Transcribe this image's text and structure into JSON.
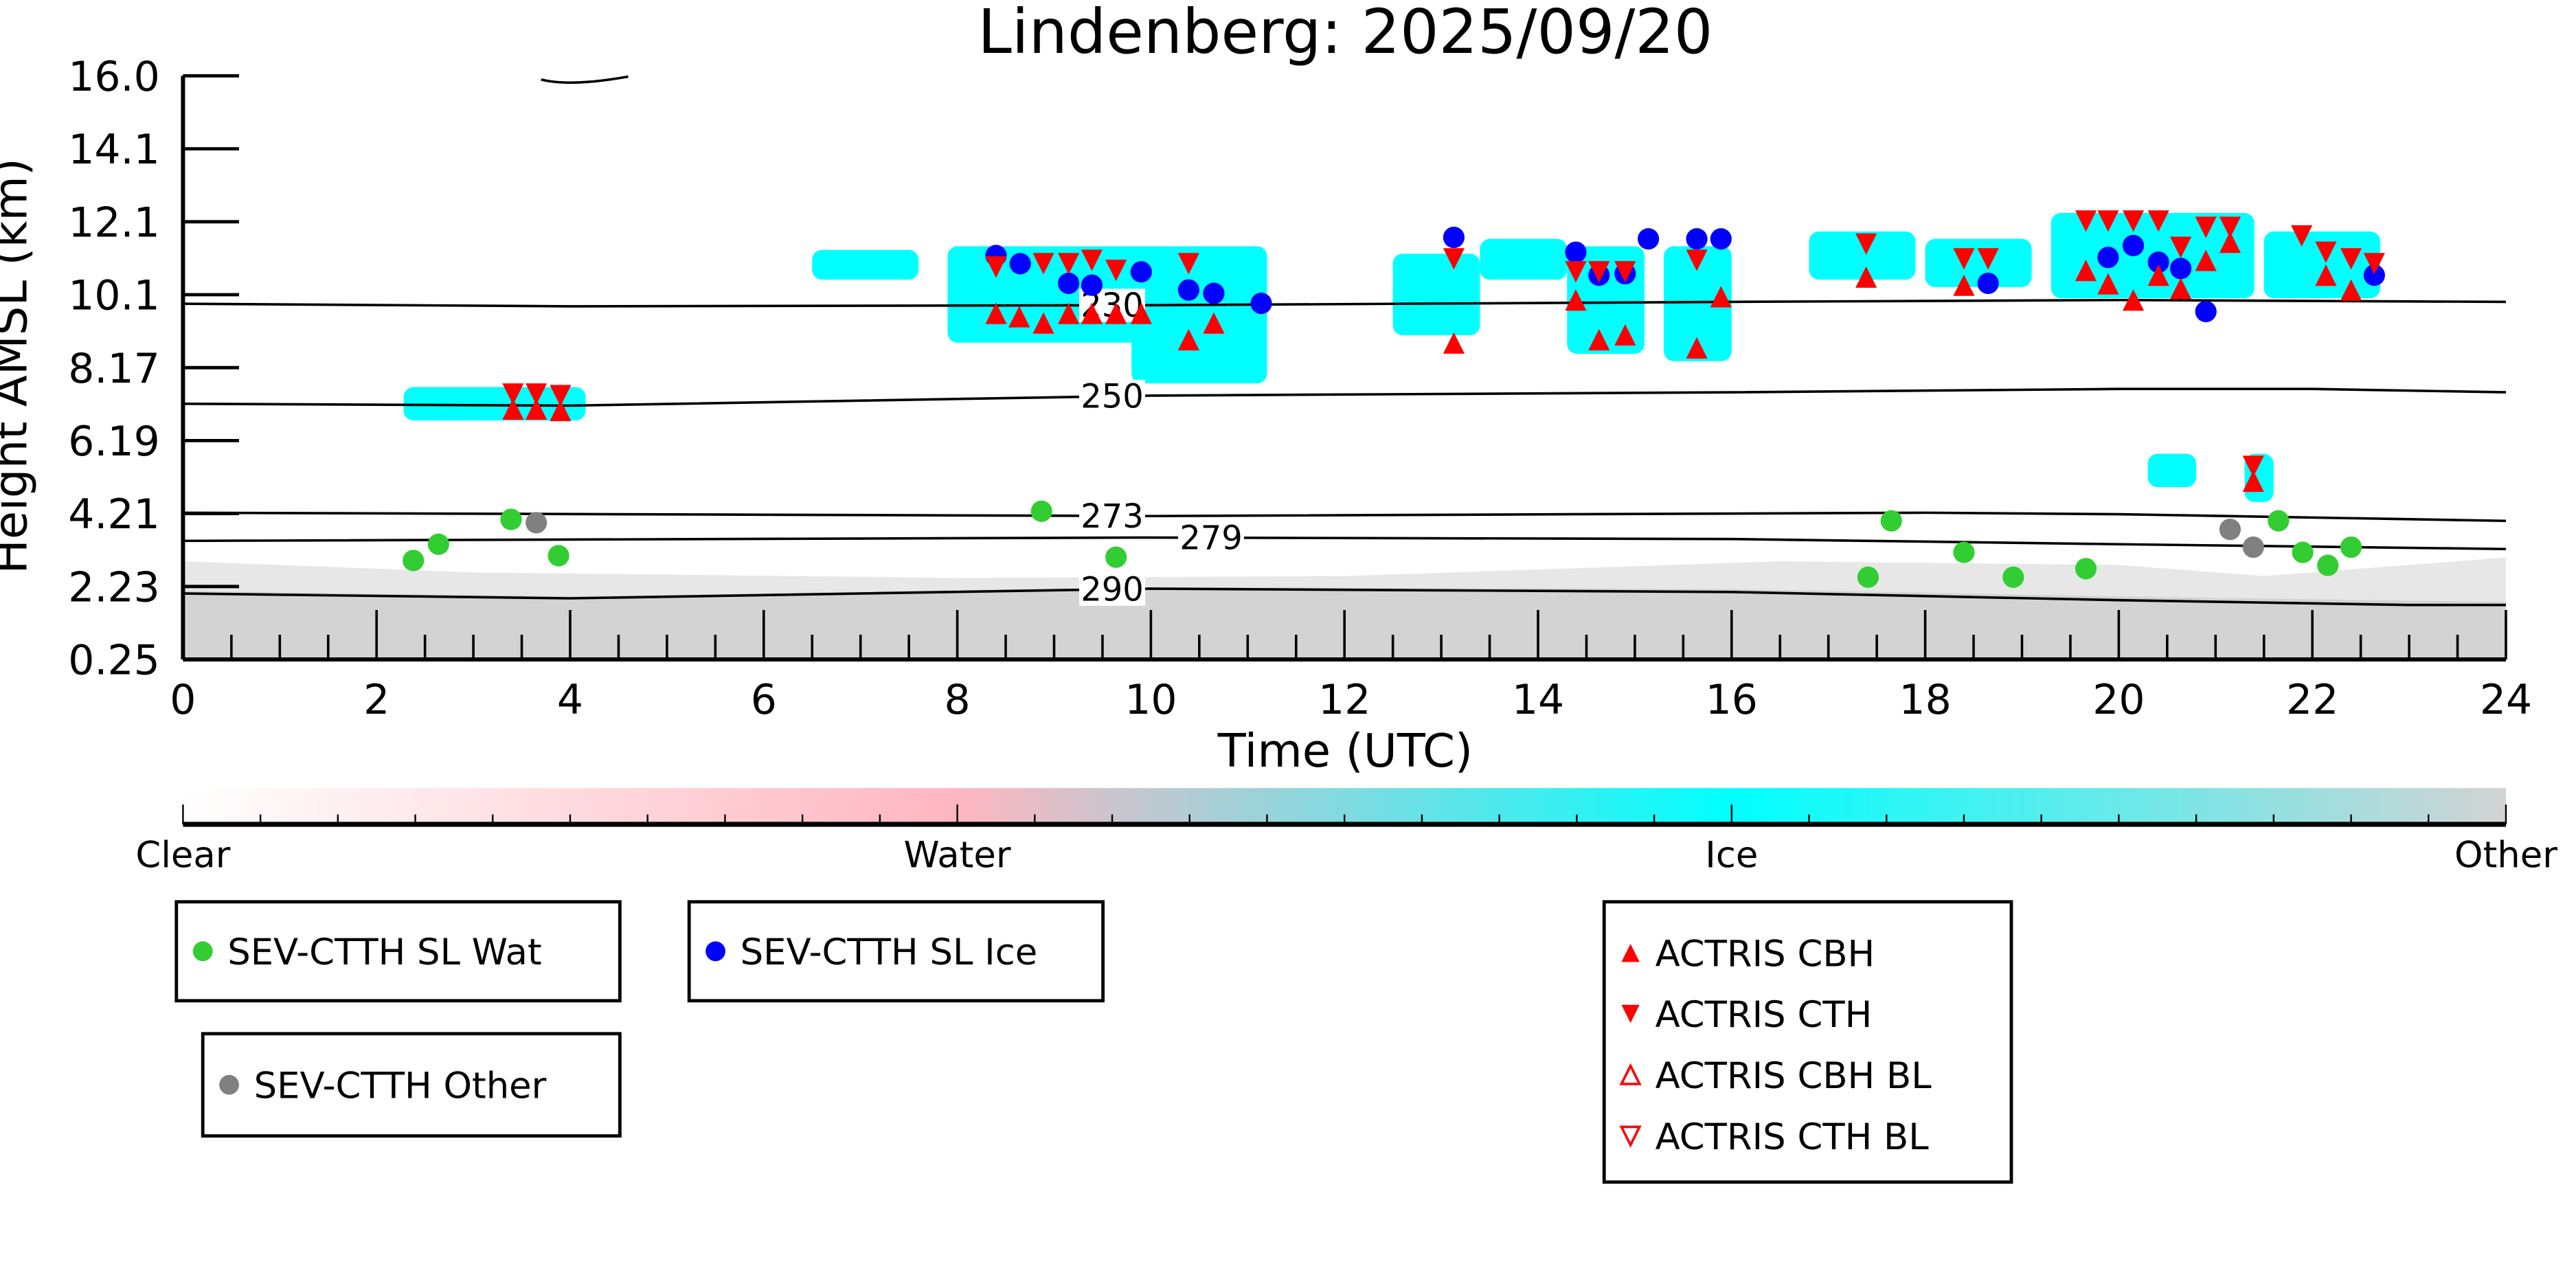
{
  "chart_data": {
    "type": "scatter",
    "title": "Lindenberg: 2025/09/20",
    "xlabel": "Time (UTC)",
    "ylabel": "Height AMSL (km)",
    "xlim": [
      0,
      24
    ],
    "ylim": [
      0.25,
      16.0
    ],
    "xticks": [
      "0",
      "2",
      "4",
      "6",
      "8",
      "10",
      "12",
      "14",
      "16",
      "18",
      "20",
      "22",
      "24"
    ],
    "yticks": [
      "0.25",
      "2.23",
      "4.21",
      "6.19",
      "8.17",
      "10.1",
      "12.1",
      "14.1",
      "16.0"
    ],
    "colorbar": {
      "labels": [
        "Clear",
        "Water",
        "Ice",
        "Other"
      ],
      "colors": [
        "#ffffff",
        "#ffb6c1",
        "#00ffff",
        "#d3d3d3"
      ]
    },
    "cloud_mask_ice": [
      [
        2.28,
        4.16,
        6.7,
        7.6
      ],
      [
        7.9,
        11.2,
        8.8,
        11.4
      ],
      [
        9.8,
        11.2,
        7.7,
        9.5
      ],
      [
        6.5,
        7.6,
        10.5,
        11.3
      ],
      [
        12.5,
        13.4,
        9.0,
        11.2
      ],
      [
        13.4,
        14.3,
        10.5,
        11.6
      ],
      [
        14.3,
        15.1,
        8.5,
        11.4
      ],
      [
        15.3,
        16.0,
        8.3,
        11.4
      ],
      [
        16.8,
        17.9,
        10.5,
        11.8
      ],
      [
        18.0,
        19.1,
        10.3,
        11.6
      ],
      [
        19.3,
        21.4,
        10.0,
        12.3
      ],
      [
        21.5,
        22.7,
        10.0,
        11.8
      ],
      [
        20.3,
        20.8,
        4.9,
        5.8
      ],
      [
        21.3,
        21.6,
        4.5,
        5.8
      ]
    ],
    "isotherms": [
      {
        "label": "230",
        "label_t": 9.6,
        "points": [
          [
            0,
            9.85
          ],
          [
            4,
            9.78
          ],
          [
            10,
            9.81
          ],
          [
            16,
            9.9
          ],
          [
            20,
            9.95
          ],
          [
            24,
            9.9
          ]
        ]
      },
      {
        "label": "250",
        "label_t": 9.6,
        "points": [
          [
            0,
            7.15
          ],
          [
            4,
            7.1
          ],
          [
            10,
            7.37
          ],
          [
            16,
            7.46
          ],
          [
            20,
            7.55
          ],
          [
            22,
            7.55
          ],
          [
            24,
            7.46
          ]
        ]
      },
      {
        "label": "273",
        "label_t": 9.6,
        "points": [
          [
            0,
            4.21
          ],
          [
            10,
            4.12
          ],
          [
            18,
            4.21
          ],
          [
            20,
            4.17
          ],
          [
            24,
            3.99
          ]
        ]
      },
      {
        "label": "279",
        "label_t": 9.6,
        "points": [
          [
            0,
            3.45
          ],
          [
            10,
            3.54
          ],
          [
            16,
            3.5
          ],
          [
            20,
            3.36
          ],
          [
            24,
            3.23
          ]
        ]
      },
      {
        "label": "290",
        "label_t": 9.6,
        "points": [
          [
            0,
            2.03
          ],
          [
            4,
            1.9
          ],
          [
            10,
            2.16
          ],
          [
            16,
            2.07
          ],
          [
            20,
            1.85
          ],
          [
            23,
            1.72
          ],
          [
            24,
            1.72
          ]
        ]
      }
    ],
    "series": [
      {
        "name": "SEV-CTTH SL Wat",
        "marker": "circle",
        "color": "#32cd32",
        "points": [
          [
            2.38,
            2.92
          ],
          [
            2.64,
            3.36
          ],
          [
            3.39,
            4.03
          ],
          [
            3.88,
            3.05
          ],
          [
            8.87,
            4.25
          ],
          [
            9.64,
            3.01
          ],
          [
            17.41,
            2.47
          ],
          [
            17.65,
            3.99
          ],
          [
            18.4,
            3.14
          ],
          [
            18.91,
            2.47
          ],
          [
            19.66,
            2.7
          ],
          [
            21.65,
            3.99
          ],
          [
            21.9,
            3.14
          ],
          [
            22.16,
            2.79
          ],
          [
            22.4,
            3.28
          ]
        ]
      },
      {
        "name": "SEV-CTTH SL Ice",
        "marker": "circle",
        "color": "#0000ff",
        "points": [
          [
            8.4,
            11.15
          ],
          [
            8.65,
            10.93
          ],
          [
            9.15,
            10.4
          ],
          [
            9.39,
            10.35
          ],
          [
            9.9,
            10.71
          ],
          [
            10.39,
            10.22
          ],
          [
            10.65,
            10.13
          ],
          [
            11.14,
            9.86
          ],
          [
            13.13,
            11.64
          ],
          [
            14.39,
            11.24
          ],
          [
            14.63,
            10.62
          ],
          [
            14.9,
            10.66
          ],
          [
            15.14,
            11.6
          ],
          [
            15.64,
            11.6
          ],
          [
            15.89,
            11.6
          ],
          [
            18.65,
            10.4
          ],
          [
            19.89,
            11.1
          ],
          [
            20.15,
            11.42
          ],
          [
            20.41,
            10.97
          ],
          [
            20.64,
            10.8
          ],
          [
            20.9,
            9.64
          ],
          [
            22.64,
            10.62
          ]
        ]
      },
      {
        "name": "SEV-CTTH Other",
        "marker": "circle",
        "color": "#808080",
        "points": [
          [
            3.65,
            3.94
          ],
          [
            21.15,
            3.76
          ],
          [
            21.39,
            3.28
          ]
        ]
      },
      {
        "name": "ACTRIS CBH",
        "marker": "triangle-up",
        "color": "#ff0000",
        "points": [
          [
            3.41,
            7.01
          ],
          [
            3.65,
            7.01
          ],
          [
            3.9,
            6.97
          ],
          [
            8.4,
            9.59
          ],
          [
            8.64,
            9.5
          ],
          [
            8.89,
            9.33
          ],
          [
            9.15,
            9.59
          ],
          [
            9.39,
            9.59
          ],
          [
            9.64,
            9.59
          ],
          [
            9.9,
            9.59
          ],
          [
            10.39,
            8.88
          ],
          [
            10.65,
            9.33
          ],
          [
            13.13,
            8.79
          ],
          [
            14.39,
            9.95
          ],
          [
            14.63,
            8.88
          ],
          [
            14.9,
            9.01
          ],
          [
            15.64,
            8.66
          ],
          [
            15.89,
            10.04
          ],
          [
            17.39,
            10.57
          ],
          [
            18.4,
            10.35
          ],
          [
            19.66,
            10.75
          ],
          [
            19.89,
            10.39
          ],
          [
            20.15,
            9.95
          ],
          [
            20.41,
            10.62
          ],
          [
            20.64,
            10.26
          ],
          [
            20.9,
            11.02
          ],
          [
            21.15,
            11.51
          ],
          [
            22.14,
            10.62
          ],
          [
            22.4,
            10.22
          ],
          [
            21.39,
            5.06
          ]
        ]
      },
      {
        "name": "ACTRIS CTH",
        "marker": "triangle-down",
        "color": "#ff0000",
        "points": [
          [
            3.41,
            7.41
          ],
          [
            3.65,
            7.41
          ],
          [
            3.9,
            7.37
          ],
          [
            8.4,
            10.84
          ],
          [
            8.89,
            10.93
          ],
          [
            9.15,
            10.93
          ],
          [
            9.39,
            11.02
          ],
          [
            9.64,
            10.75
          ],
          [
            10.39,
            10.93
          ],
          [
            13.13,
            11.06
          ],
          [
            14.39,
            10.71
          ],
          [
            14.63,
            10.71
          ],
          [
            14.9,
            10.71
          ],
          [
            15.64,
            11.02
          ],
          [
            17.39,
            11.46
          ],
          [
            18.4,
            11.06
          ],
          [
            18.65,
            11.06
          ],
          [
            19.66,
            12.08
          ],
          [
            19.89,
            12.08
          ],
          [
            20.15,
            12.08
          ],
          [
            20.41,
            12.08
          ],
          [
            20.64,
            11.37
          ],
          [
            20.9,
            11.91
          ],
          [
            21.15,
            11.91
          ],
          [
            21.89,
            11.68
          ],
          [
            22.14,
            11.24
          ],
          [
            22.4,
            11.06
          ],
          [
            22.64,
            10.93
          ],
          [
            21.39,
            5.46
          ]
        ]
      },
      {
        "name": "ACTRIS CBH BL",
        "marker": "triangle-up-open",
        "color": "#ff0000",
        "points": []
      },
      {
        "name": "ACTRIS CTH BL",
        "marker": "triangle-down-open",
        "color": "#ff0000",
        "points": []
      }
    ],
    "legends": [
      {
        "entries": [
          0
        ]
      },
      {
        "entries": [
          1
        ]
      },
      {
        "entries": [
          2
        ]
      },
      {
        "entries": [
          3,
          4,
          5,
          6
        ]
      }
    ]
  }
}
